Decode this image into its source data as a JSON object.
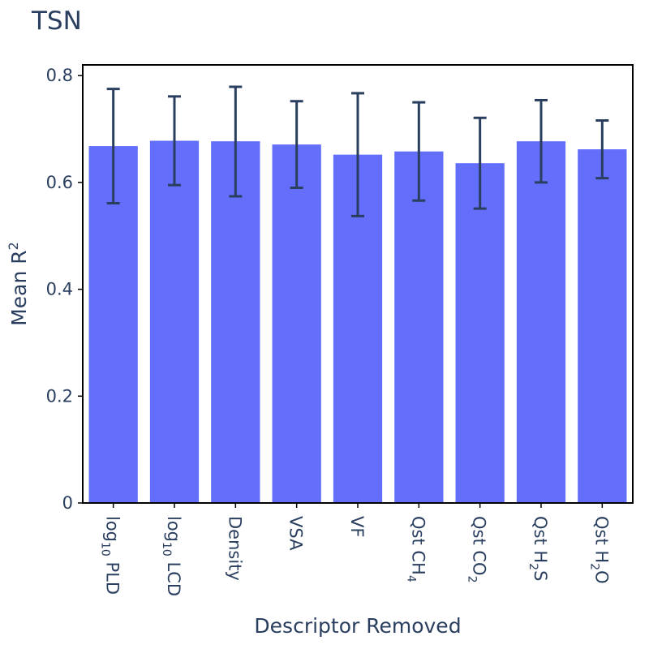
{
  "chart_data": {
    "type": "bar",
    "title": "TSN",
    "xlabel": "Descriptor Removed",
    "ylabel": "Mean R²",
    "ylim": [
      0,
      0.8
    ],
    "yticks": [
      {
        "value": 0,
        "label": "0"
      },
      {
        "value": 0.2,
        "label": "0.2"
      },
      {
        "value": 0.4,
        "label": "0.4"
      },
      {
        "value": 0.6,
        "label": "0.6"
      },
      {
        "value": 0.8,
        "label": "0.8"
      }
    ],
    "categories": [
      {
        "main": "log",
        "sub": "10",
        "rest": " PLD"
      },
      {
        "main": "log",
        "sub": "10",
        "rest": " LCD"
      },
      {
        "main": "Density",
        "sub": "",
        "rest": ""
      },
      {
        "main": "VSA",
        "sub": "",
        "rest": ""
      },
      {
        "main": "VF",
        "sub": "",
        "rest": ""
      },
      {
        "main": "Qst CH",
        "sub": "4",
        "rest": ""
      },
      {
        "main": "Qst CO",
        "sub": "2",
        "rest": ""
      },
      {
        "main": "Qst H",
        "sub": "2",
        "rest": "S"
      },
      {
        "main": "Qst H",
        "sub": "2",
        "rest": "O"
      }
    ],
    "values": [
      0.668,
      0.678,
      0.677,
      0.671,
      0.652,
      0.658,
      0.636,
      0.677,
      0.662
    ],
    "error_upper": [
      0.775,
      0.761,
      0.779,
      0.752,
      0.767,
      0.75,
      0.721,
      0.754,
      0.716
    ],
    "error_lower": [
      0.561,
      0.595,
      0.574,
      0.59,
      0.537,
      0.566,
      0.551,
      0.6,
      0.608
    ],
    "colors": {
      "bar": "#636efa",
      "error_bar": "#2a3f5f",
      "text": "#2a3f5f",
      "frame": "#000000"
    },
    "grid": false,
    "legend": "none"
  }
}
